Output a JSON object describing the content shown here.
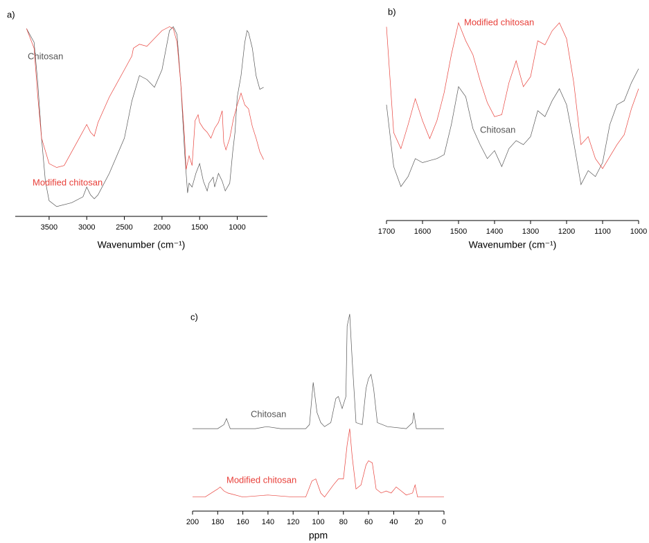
{
  "chart_data": [
    {
      "type": "line",
      "title": "a)",
      "x_label": "Wavenumber (cm⁻¹)",
      "xlim": [
        3950,
        600
      ],
      "xticks": [
        3500,
        3000,
        2500,
        2000,
        1500,
        1000
      ],
      "ylim": [
        0,
        100
      ],
      "series": [
        {
          "name": "Chitosan",
          "color": "#555555",
          "x": [
            3800,
            3700,
            3650,
            3600,
            3550,
            3500,
            3400,
            3200,
            3050,
            3000,
            2950,
            2900,
            2850,
            2700,
            2500,
            2400,
            2300,
            2200,
            2100,
            2000,
            1900,
            1850,
            1800,
            1750,
            1700,
            1660,
            1640,
            1600,
            1550,
            1500,
            1450,
            1400,
            1375,
            1320,
            1300,
            1250,
            1200,
            1160,
            1100,
            1060,
            1030,
            1000,
            950,
            900,
            870,
            850,
            800,
            750,
            700,
            650
          ],
          "values": [
            96,
            89,
            68,
            40,
            18,
            8,
            5,
            7,
            10,
            15,
            11,
            9,
            11,
            22,
            40,
            59,
            72,
            70,
            66,
            75,
            95,
            97,
            93,
            68,
            33,
            12,
            17,
            15,
            22,
            27,
            18,
            13,
            17,
            20,
            15,
            22,
            18,
            13,
            17,
            33,
            43,
            61,
            72,
            89,
            95,
            94,
            86,
            72,
            65,
            66
          ]
        },
        {
          "name": "Modified chitosan",
          "color": "#e8403a",
          "x": [
            3800,
            3700,
            3650,
            3600,
            3500,
            3400,
            3300,
            3200,
            3100,
            3000,
            2950,
            2900,
            2850,
            2700,
            2500,
            2400,
            2380,
            2300,
            2200,
            2000,
            1900,
            1850,
            1800,
            1750,
            1700,
            1680,
            1640,
            1600,
            1560,
            1520,
            1500,
            1450,
            1400,
            1350,
            1300,
            1250,
            1200,
            1180,
            1150,
            1100,
            1050,
            1000,
            950,
            900,
            850,
            800,
            750,
            700,
            650
          ],
          "values": [
            96,
            86,
            61,
            40,
            27,
            25,
            26,
            33,
            40,
            47,
            43,
            41,
            48,
            61,
            75,
            82,
            86,
            88,
            87,
            95,
            97,
            96,
            89,
            68,
            40,
            24,
            31,
            26,
            49,
            52,
            48,
            45,
            43,
            40,
            45,
            48,
            54,
            38,
            34,
            40,
            50,
            57,
            63,
            57,
            55,
            46,
            40,
            33,
            29
          ]
        }
      ]
    },
    {
      "type": "line",
      "title": "b)",
      "x_label": "Wavenumber (cm⁻¹)",
      "xlim": [
        1700,
        1000
      ],
      "xticks": [
        1700,
        1600,
        1500,
        1400,
        1300,
        1200,
        1100,
        1000
      ],
      "ylim": [
        0,
        100
      ],
      "series": [
        {
          "name": "Chitosan",
          "color": "#555555",
          "x": [
            1700,
            1680,
            1660,
            1640,
            1620,
            1600,
            1580,
            1560,
            1540,
            1520,
            1500,
            1480,
            1460,
            1440,
            1420,
            1400,
            1380,
            1360,
            1340,
            1320,
            1300,
            1280,
            1260,
            1240,
            1220,
            1200,
            1180,
            1160,
            1140,
            1120,
            1100,
            1080,
            1060,
            1040,
            1020,
            1000
          ],
          "values": [
            58,
            27,
            17,
            22,
            31,
            29,
            30,
            31,
            33,
            48,
            67,
            62,
            46,
            38,
            31,
            35,
            27,
            36,
            40,
            38,
            42,
            55,
            52,
            60,
            66,
            58,
            39,
            18,
            25,
            22,
            29,
            48,
            58,
            60,
            69,
            76
          ]
        },
        {
          "name": "Modified chitosan",
          "color": "#e8403a",
          "x": [
            1700,
            1680,
            1660,
            1640,
            1620,
            1600,
            1580,
            1560,
            1540,
            1520,
            1500,
            1480,
            1460,
            1440,
            1420,
            1400,
            1380,
            1360,
            1340,
            1320,
            1300,
            1280,
            1260,
            1240,
            1220,
            1200,
            1180,
            1160,
            1140,
            1120,
            1100,
            1080,
            1060,
            1040,
            1020,
            1000
          ],
          "values": [
            97,
            44,
            36,
            48,
            61,
            50,
            41,
            50,
            64,
            83,
            99,
            90,
            83,
            70,
            59,
            52,
            53,
            69,
            80,
            67,
            72,
            90,
            88,
            95,
            99,
            91,
            69,
            38,
            42,
            31,
            26,
            32,
            38,
            43,
            56,
            66
          ]
        }
      ]
    },
    {
      "type": "line",
      "title": "c)",
      "x_label": "ppm",
      "xlim": [
        200,
        0
      ],
      "xticks": [
        200,
        180,
        160,
        140,
        120,
        100,
        80,
        60,
        40,
        20,
        0
      ],
      "ylim": [
        0,
        100
      ],
      "series": [
        {
          "name": "Chitosan",
          "color": "#555555",
          "x": [
            200,
            180,
            175,
            173,
            170,
            150,
            141,
            130,
            110,
            107,
            104,
            101,
            98,
            95,
            90,
            86,
            84,
            81,
            78,
            77,
            75,
            73,
            70,
            65,
            62,
            60,
            58,
            56,
            53,
            45,
            30,
            25,
            24,
            22,
            10,
            0
          ],
          "values": [
            41,
            41,
            43,
            46,
            41,
            41,
            42,
            41,
            41,
            43,
            64,
            49,
            44,
            42,
            44,
            56,
            57,
            51,
            57,
            92,
            98,
            75,
            44,
            43,
            61,
            66,
            68,
            61,
            44,
            42,
            41,
            44,
            49,
            41,
            41,
            41
          ]
        },
        {
          "name": "Modified chitosan",
          "color": "#e8403a",
          "x": [
            200,
            190,
            180,
            178,
            175,
            172,
            160,
            140,
            120,
            110,
            105,
            102,
            98,
            95,
            88,
            84,
            80,
            77,
            75,
            73,
            70,
            66,
            62,
            60,
            57,
            54,
            50,
            46,
            42,
            38,
            34,
            30,
            25,
            23,
            21,
            10,
            0
          ],
          "values": [
            7,
            7,
            11,
            12,
            10,
            9,
            7,
            8,
            7,
            7,
            15,
            16,
            9,
            7,
            13,
            16,
            16,
            33,
            41,
            27,
            11,
            13,
            23,
            25,
            24,
            11,
            9,
            10,
            9,
            12,
            10,
            8,
            9,
            13,
            7,
            7,
            7
          ]
        }
      ]
    }
  ]
}
